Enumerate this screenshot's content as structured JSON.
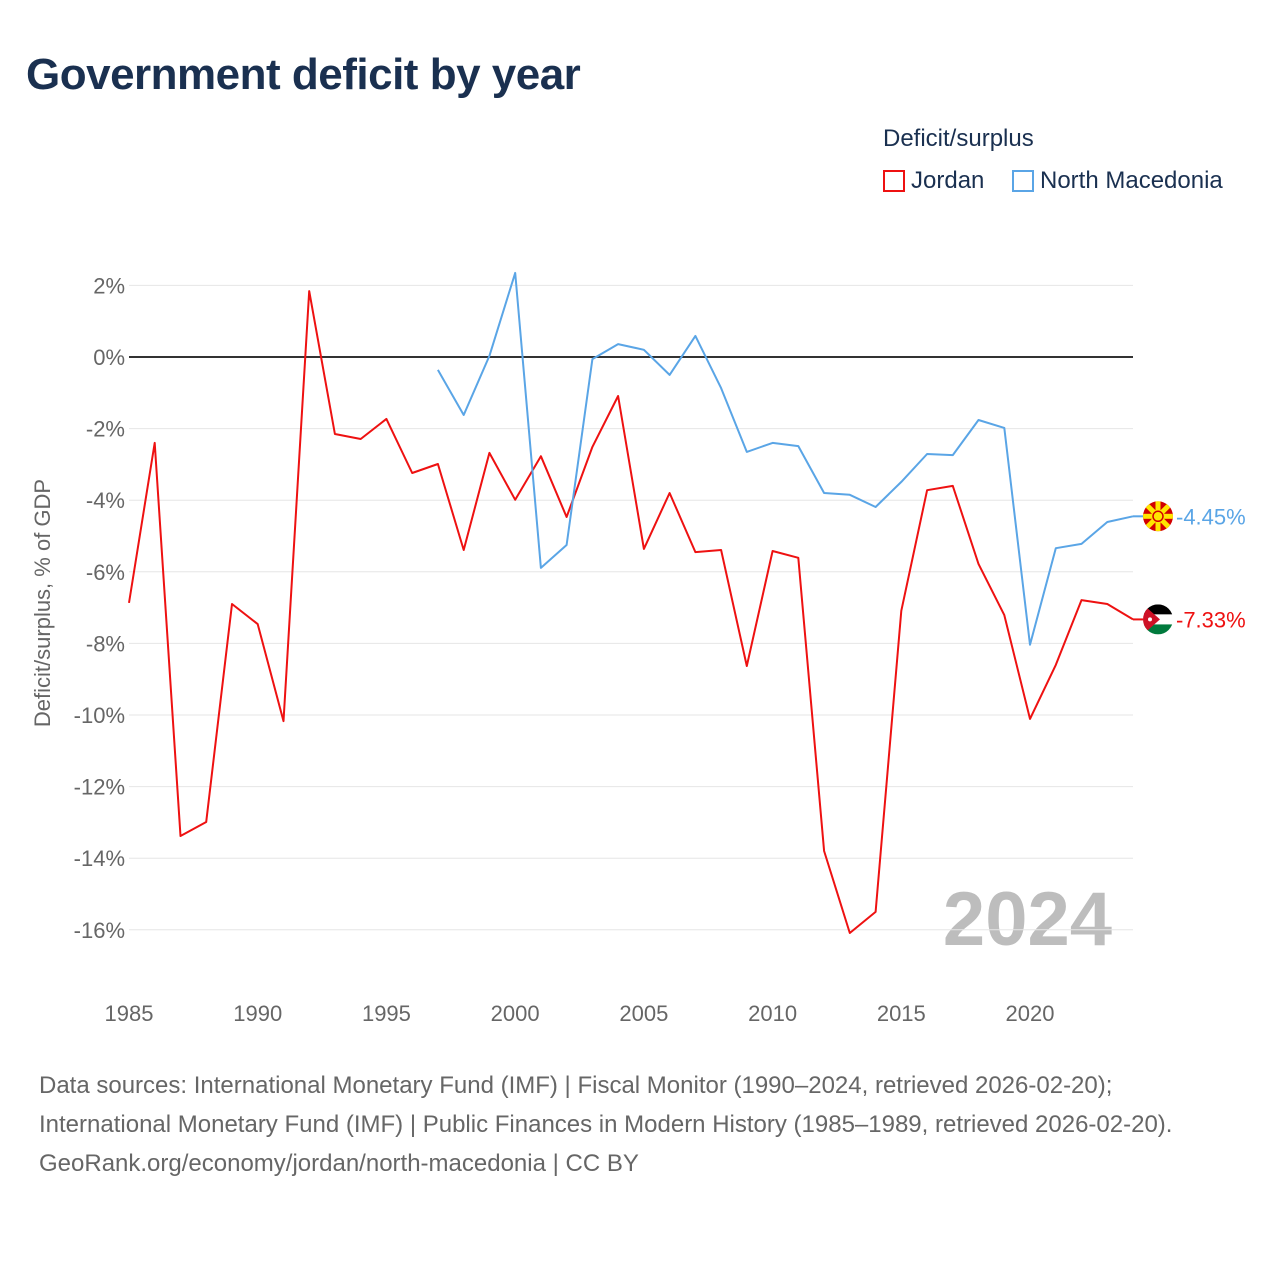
{
  "chart_data": {
    "type": "line",
    "title": "Government deficit by year",
    "ylabel": "Deficit/surplus, % of GDP",
    "xlabel": "",
    "ylim": [
      -16.5,
      2.5
    ],
    "xlim": [
      1985,
      2024
    ],
    "yticks": [
      2,
      0,
      -2,
      -4,
      -6,
      -8,
      -10,
      -12,
      -14,
      -16
    ],
    "ytick_labels": [
      "2%",
      "0%",
      "-2%",
      "-4%",
      "-6%",
      "-8%",
      "-10%",
      "-12%",
      "-14%",
      "-16%"
    ],
    "xticks": [
      1985,
      1990,
      1995,
      2000,
      2005,
      2010,
      2015,
      2020
    ],
    "xtick_labels": [
      "1985",
      "1990",
      "1995",
      "2000",
      "2005",
      "2010",
      "2015",
      "2020"
    ],
    "grid": true,
    "legend_title": "Deficit/surplus",
    "legend_position": "top-right",
    "year_watermark": "2024",
    "series": [
      {
        "name": "Jordan",
        "color": "#ee1111",
        "end_label": "-7.33%",
        "flag": "jordan-flag",
        "x": [
          1985,
          1986,
          1987,
          1988,
          1989,
          1990,
          1991,
          1992,
          1993,
          1994,
          1995,
          1996,
          1997,
          1998,
          1999,
          2000,
          2001,
          2002,
          2003,
          2004,
          2005,
          2006,
          2007,
          2008,
          2009,
          2010,
          2011,
          2012,
          2013,
          2014,
          2015,
          2016,
          2017,
          2018,
          2019,
          2020,
          2021,
          2022,
          2023,
          2024
        ],
        "values": [
          -6.87,
          -2.4,
          -13.38,
          -12.99,
          -6.9,
          -7.46,
          -10.17,
          1.84,
          -2.15,
          -2.29,
          -1.73,
          -3.24,
          -2.99,
          -5.39,
          -2.68,
          -3.99,
          -2.77,
          -4.47,
          -2.51,
          -1.09,
          -5.36,
          -3.8,
          -5.45,
          -5.39,
          -8.63,
          -5.42,
          -5.61,
          -13.8,
          -16.09,
          -15.5,
          -7.09,
          -3.72,
          -3.6,
          -5.78,
          -7.21,
          -10.11,
          -8.6,
          -6.79,
          -6.9,
          -7.33
        ]
      },
      {
        "name": "North Macedonia",
        "color": "#5aa5e6",
        "end_label": "-4.45%",
        "flag": "north-macedonia-flag",
        "x": [
          1997,
          1998,
          1999,
          2000,
          2001,
          2002,
          2003,
          2004,
          2005,
          2006,
          2007,
          2008,
          2009,
          2010,
          2011,
          2012,
          2013,
          2014,
          2015,
          2016,
          2017,
          2018,
          2019,
          2020,
          2021,
          2022,
          2023,
          2024
        ],
        "values": [
          -0.36,
          -1.62,
          0.03,
          2.35,
          -5.89,
          -5.25,
          -0.06,
          0.36,
          0.2,
          -0.5,
          0.59,
          -0.87,
          -2.65,
          -2.4,
          -2.49,
          -3.8,
          -3.85,
          -4.19,
          -3.49,
          -2.71,
          -2.74,
          -1.76,
          -1.98,
          -8.04,
          -5.34,
          -5.22,
          -4.61,
          -4.45
        ]
      }
    ]
  },
  "footer": {
    "sources": "Data sources: International Monetary Fund (IMF) | Fiscal Monitor (1990–2024, retrieved 2026-02-20); International Monetary Fund (IMF) | Public Finances in Modern History (1985–1989, retrieved 2026-02-20).",
    "credit": "GeoRank.org/economy/jordan/north-macedonia | CC BY"
  }
}
